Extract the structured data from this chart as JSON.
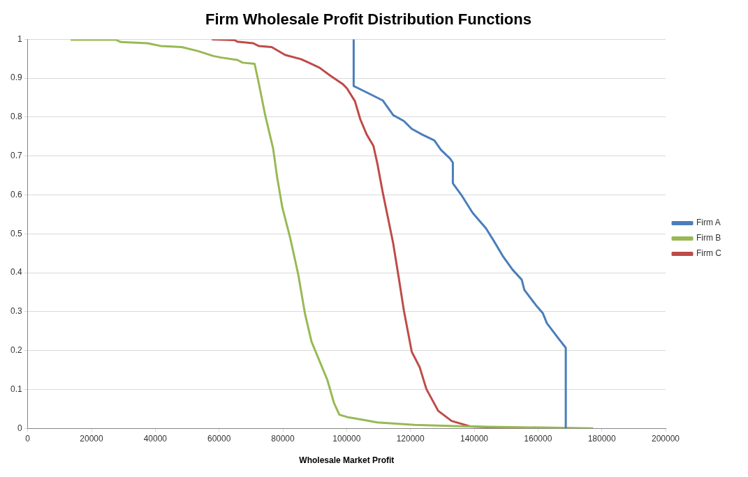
{
  "chart_data": {
    "type": "line",
    "title": "Firm Wholesale Profit Distribution Functions",
    "xlabel": "Wholesale Market Profit",
    "xlim": [
      0,
      200000
    ],
    "xticks": [
      0,
      20000,
      40000,
      60000,
      80000,
      100000,
      120000,
      140000,
      160000,
      180000,
      200000
    ],
    "ylim": [
      0,
      1
    ],
    "yticks": [
      0,
      0.1,
      0.2,
      0.3,
      0.4,
      0.5,
      0.6,
      0.7,
      0.8,
      0.9,
      1
    ],
    "grid": "y",
    "legend": "right",
    "marker": "none",
    "line_style": "solid",
    "series": [
      {
        "name": "Firm A",
        "color": "#4a7ebb",
        "x": [
          102200,
          102200,
          107150,
          111300,
          114600,
          117940,
          120400,
          123750,
          127500,
          129560,
          132470,
          133300,
          133300,
          136200,
          139500,
          143700,
          146200,
          149100,
          152000,
          154900,
          155700,
          159400,
          161500,
          162800,
          166500,
          168700,
          168700
        ],
        "values": [
          1,
          0.88,
          0.86,
          0.843,
          0.805,
          0.79,
          0.77,
          0.755,
          0.74,
          0.716,
          0.693,
          0.683,
          0.63,
          0.597,
          0.554,
          0.514,
          0.481,
          0.441,
          0.408,
          0.382,
          0.356,
          0.316,
          0.296,
          0.27,
          0.23,
          0.207,
          0
        ]
      },
      {
        "name": "Firm B",
        "color": "#98b954",
        "x": [
          13450,
          27560,
          29220,
          37520,
          41670,
          48300,
          53300,
          58270,
          60760,
          65740,
          67400,
          71140,
          72380,
          74460,
          76950,
          78190,
          79850,
          82340,
          84830,
          86900,
          88980,
          90640,
          93960,
          96030,
          97700,
          100600,
          105160,
          109600,
          121260,
          137860,
          161100,
          177300
        ],
        "values": [
          0.999,
          0.999,
          0.993,
          0.99,
          0.983,
          0.98,
          0.97,
          0.957,
          0.953,
          0.947,
          0.94,
          0.937,
          0.89,
          0.805,
          0.719,
          0.646,
          0.567,
          0.488,
          0.395,
          0.296,
          0.223,
          0.19,
          0.124,
          0.065,
          0.035,
          0.028,
          0.022,
          0.015,
          0.009,
          0.005,
          0.002,
          0
        ]
      },
      {
        "name": "Firm C",
        "color": "#be4b48",
        "x": [
          57700,
          64900,
          65700,
          70700,
          72400,
          76500,
          80700,
          85700,
          88150,
          91500,
          94800,
          98900,
          100100,
          102600,
          104250,
          106300,
          108400,
          109640,
          111300,
          112960,
          114600,
          116300,
          117940,
          120400,
          122900,
          125000,
          128700,
          132900,
          138700,
          146200,
          155300
        ],
        "values": [
          1,
          0.998,
          0.994,
          0.99,
          0.983,
          0.98,
          0.96,
          0.949,
          0.94,
          0.927,
          0.907,
          0.884,
          0.874,
          0.841,
          0.795,
          0.755,
          0.726,
          0.68,
          0.607,
          0.541,
          0.475,
          0.389,
          0.303,
          0.197,
          0.157,
          0.101,
          0.045,
          0.019,
          0.005,
          0.002,
          0
        ]
      }
    ]
  }
}
